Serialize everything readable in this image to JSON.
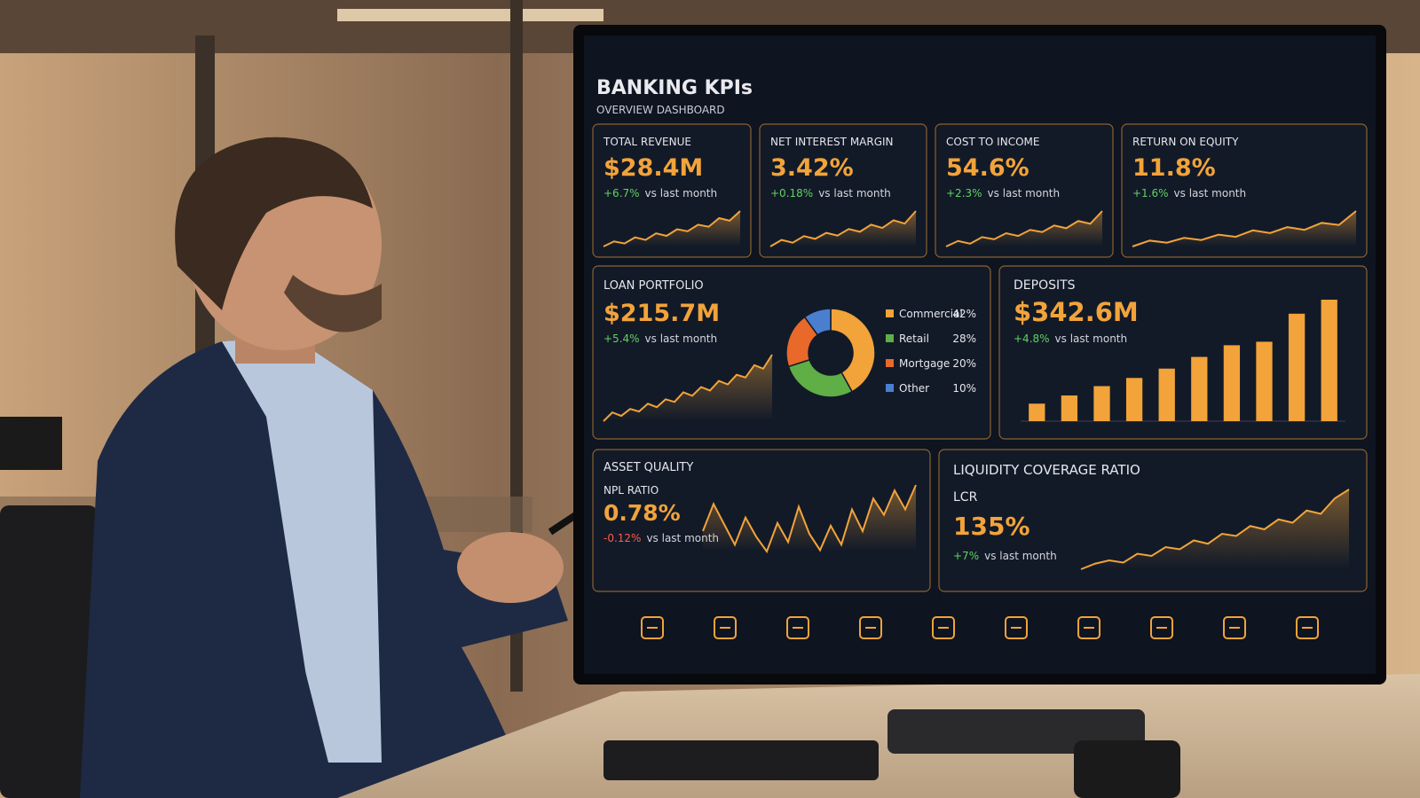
{
  "header": {
    "title": "BANKING KPIs",
    "subtitle": "OVERVIEW DASHBOARD"
  },
  "kpis": [
    {
      "label": "TOTAL REVENUE",
      "value": "$28.4M",
      "change": "+6.7%",
      "change_note": "vs last month",
      "trend": [
        2,
        3,
        2.6,
        3.8,
        3.3,
        4.6,
        4.1,
        5.4,
        5,
        6.3,
        5.9,
        7.6,
        7.1,
        9
      ]
    },
    {
      "label": "NET INTEREST MARGIN",
      "value": "3.42%",
      "change": "+0.18%",
      "change_note": "vs last month",
      "trend": [
        2,
        3.2,
        2.7,
        3.9,
        3.4,
        4.5,
        4,
        5.2,
        4.7,
        6,
        5.4,
        6.8,
        6.2,
        8.5
      ]
    },
    {
      "label": "COST TO INCOME",
      "value": "54.6%",
      "change": "+2.3%",
      "change_note": "vs last month",
      "trend": [
        2,
        3,
        2.5,
        3.7,
        3.3,
        4.4,
        3.9,
        5,
        4.6,
        5.8,
        5.3,
        6.6,
        6.1,
        8.4
      ]
    },
    {
      "label": "RETURN ON EQUITY",
      "value": "11.8%",
      "change": "+1.6%",
      "change_note": "vs last month",
      "trend": [
        2,
        3.1,
        2.7,
        3.6,
        3.2,
        4.2,
        3.8,
        5,
        4.5,
        5.6,
        5.1,
        6.4,
        6,
        8.6
      ]
    }
  ],
  "loan_portfolio": {
    "label": "LOAN PORTFOLIO",
    "value": "$215.7M",
    "change": "+5.4%",
    "change_note": "vs last month",
    "trend": [
      2,
      3,
      2.6,
      3.4,
      3.1,
      4,
      3.6,
      4.5,
      4.2,
      5.3,
      4.9,
      5.9,
      5.5,
      6.6,
      6.2,
      7.3,
      7,
      8.4,
      8,
      9.6
    ],
    "mix": {
      "type": "pie",
      "categories": [
        "Commercial",
        "Retail",
        "Mortgage",
        "Other"
      ],
      "values": [
        42,
        28,
        20,
        10
      ],
      "value_labels": [
        "42%",
        "28%",
        "20%",
        "10%"
      ],
      "colors": [
        "#f2a33a",
        "#5fae46",
        "#e8692a",
        "#4a7fd0"
      ]
    }
  },
  "deposits": {
    "label": "DEPOSITS",
    "value": "$342.6M",
    "change": "+4.8%",
    "change_note": "vs last month",
    "type": "bar",
    "color": "#f2a33a",
    "values": [
      1.5,
      2.2,
      3,
      3.7,
      4.5,
      5.5,
      6.5,
      6.8,
      9.2,
      10.4
    ]
  },
  "asset_quality": {
    "label": "ASSET QUALITY",
    "metric": "NPL RATIO",
    "value": "0.78%",
    "change": "-0.12%",
    "change_note": "vs last month",
    "trend": [
      4,
      6,
      4.5,
      3,
      5,
      3.6,
      2.5,
      4.6,
      3.2,
      5.8,
      3.8,
      2.6,
      4.4,
      3,
      5.6,
      4,
      6.4,
      5.2,
      7,
      5.6,
      7.4
    ]
  },
  "lcr": {
    "label": "LIQUIDITY COVERAGE RATIO",
    "metric": "LCR",
    "value": "135%",
    "change": "+7%",
    "change_note": "vs last month",
    "trend": [
      1,
      1.5,
      1.8,
      1.6,
      2.4,
      2.2,
      3,
      2.8,
      3.6,
      3.3,
      4.2,
      4,
      4.9,
      4.6,
      5.5,
      5.2,
      6.3,
      6,
      7.4,
      8.2
    ]
  }
}
